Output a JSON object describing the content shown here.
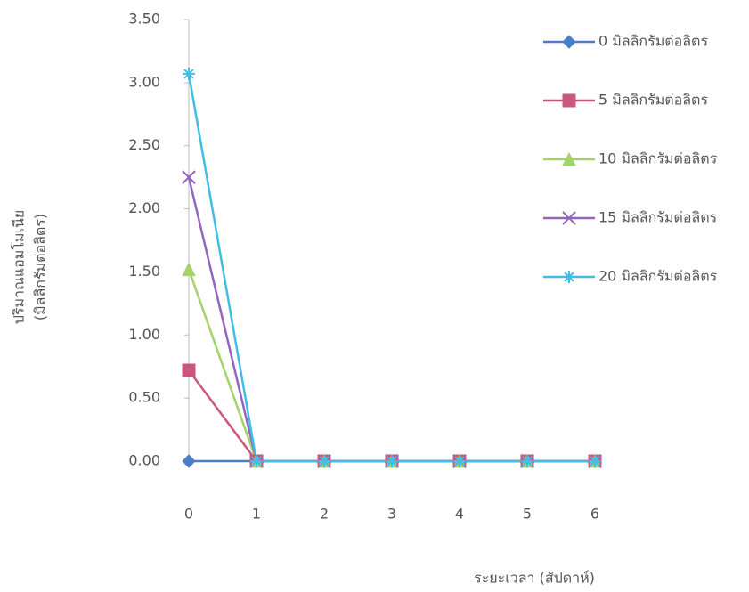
{
  "chart_data": {
    "type": "line",
    "x_label": "ระยะเวลา (สัปดาห์)",
    "y_label": [
      "ปริมาณแอมโมเนีย",
      "(มิลลิกรัมต่อลิตร)"
    ],
    "categories": [
      "0",
      "1",
      "2",
      "3",
      "4",
      "5",
      "6"
    ],
    "ylim": [
      0,
      3.5
    ],
    "yticks": [
      {
        "value": 0,
        "label": "0.00"
      },
      {
        "value": 0.5,
        "label": "0.50"
      },
      {
        "value": 1,
        "label": "1.00"
      },
      {
        "value": 1.5,
        "label": "1.50"
      },
      {
        "value": 2,
        "label": "2.00"
      },
      {
        "value": 2.5,
        "label": "2.50"
      },
      {
        "value": 3,
        "label": "3.00"
      },
      {
        "value": 3.5,
        "label": "3.50"
      }
    ],
    "grid": false,
    "legend": "right",
    "series": [
      {
        "name": "0 มิลลิกรัมต่อลิตร",
        "color": "#4a7fc8",
        "marker": "diamond",
        "values": [
          0,
          0,
          0,
          0,
          0,
          0,
          0
        ]
      },
      {
        "name": "5 มิลลิกรัมต่อลิตร",
        "color": "#c9577e",
        "marker": "square",
        "values": [
          0.72,
          0,
          0,
          0,
          0,
          0,
          0
        ]
      },
      {
        "name": "10 มิลลิกรัมต่อลิตร",
        "color": "#a3d36a",
        "marker": "triangle",
        "values": [
          1.52,
          0,
          0,
          0,
          0,
          0,
          0
        ]
      },
      {
        "name": "15 มิลลิกรัมต่อลิตร",
        "color": "#9366bd",
        "marker": "x",
        "values": [
          2.25,
          0,
          0,
          0,
          0,
          0,
          0
        ]
      },
      {
        "name": "20 มิลลิกรัมต่อลิตร",
        "color": "#42bde6",
        "marker": "star",
        "values": [
          3.07,
          0,
          0,
          0,
          0,
          0,
          0
        ]
      }
    ]
  }
}
